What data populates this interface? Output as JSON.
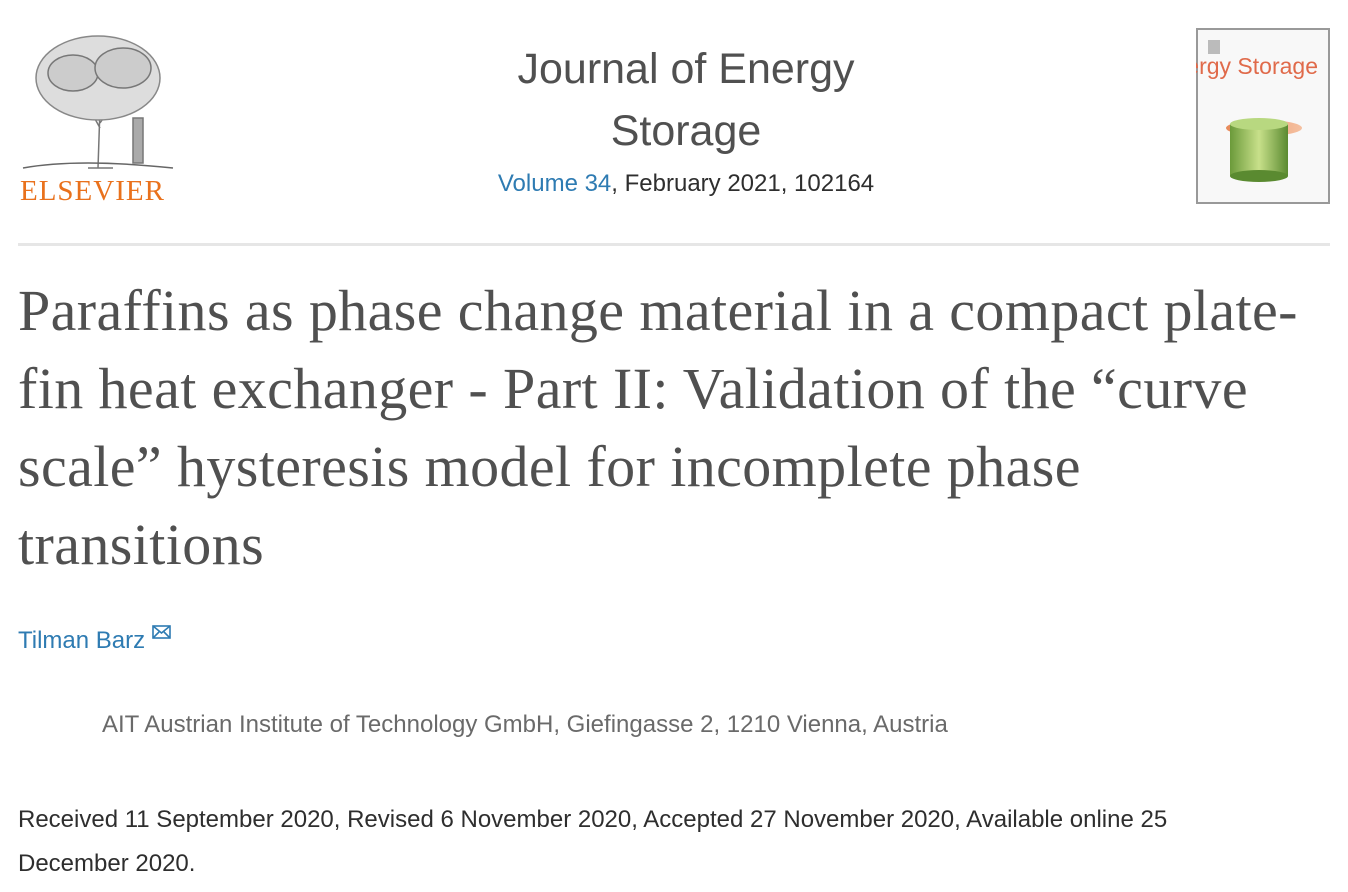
{
  "header": {
    "publisher": "ELSEVIER",
    "journal": "Journal of Energy Storage",
    "volume_link": "Volume 34",
    "issue_info": ", February 2021, 102164",
    "cover_title": "Energy Storage"
  },
  "article": {
    "title": "Paraffins as phase change material in a compact plate-fin heat exchanger - Part II: Validation of the “curve scale” hysteresis model for incomplete phase transitions",
    "author": "Tilman Barz",
    "affiliation": "AIT Austrian Institute of Technology GmbH, Giefingasse 2, 1210 Vienna, Austria",
    "dates": "Received 11 September 2020, Revised 6 November 2020, Accepted 27 November 2020, Available online 25 December 2020."
  }
}
